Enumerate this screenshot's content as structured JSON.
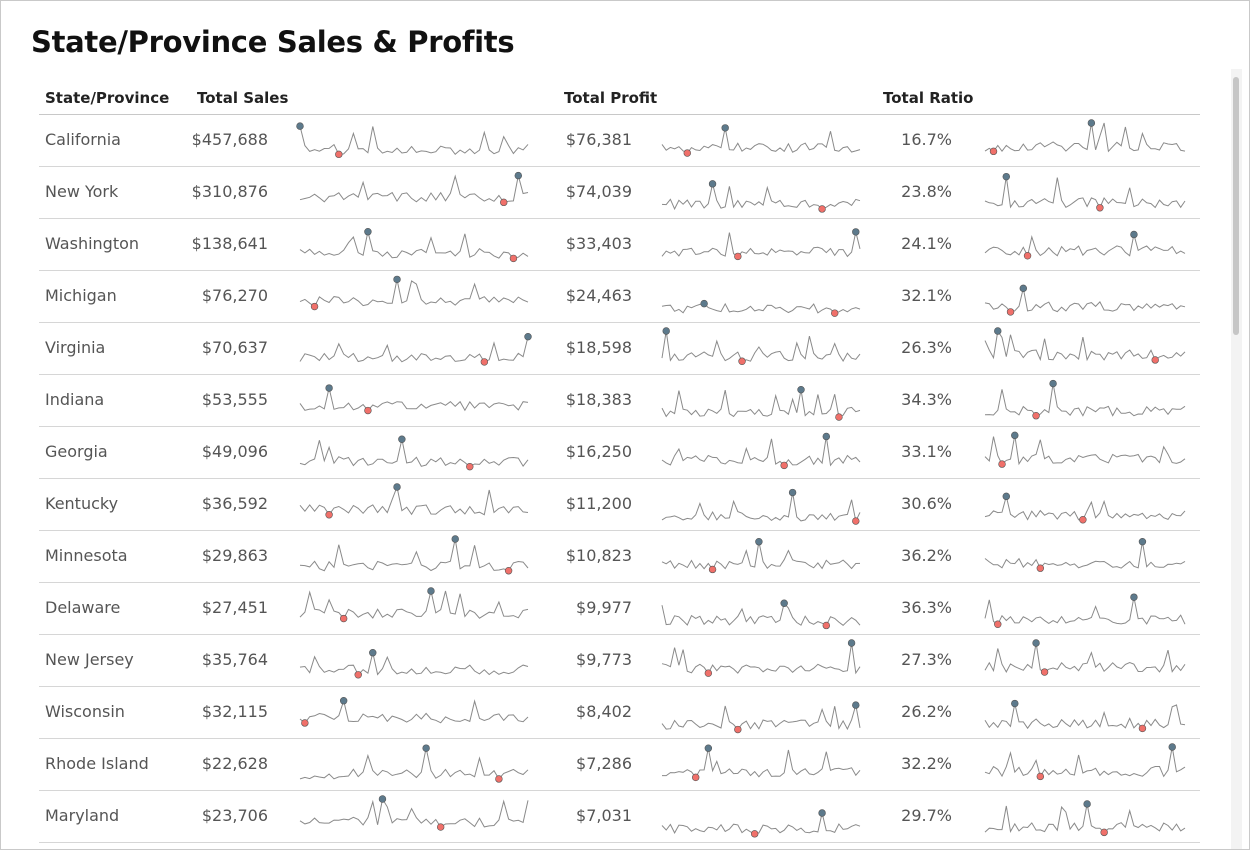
{
  "title": "State/Province Sales & Profits",
  "columns": {
    "state": "State/Province",
    "sales": "Total Sales",
    "profit": "Total Profit",
    "ratio": "Total Ratio"
  },
  "colors": {
    "line": "#8a8a8a",
    "max_marker": "#5d7a8c",
    "min_marker": "#f0706a"
  },
  "rows": [
    {
      "state": "California",
      "sales": "$457,688",
      "profit": "$76,381",
      "ratio": "16.7%"
    },
    {
      "state": "New York",
      "sales": "$310,876",
      "profit": "$74,039",
      "ratio": "23.8%"
    },
    {
      "state": "Washington",
      "sales": "$138,641",
      "profit": "$33,403",
      "ratio": "24.1%"
    },
    {
      "state": "Michigan",
      "sales": "$76,270",
      "profit": "$24,463",
      "ratio": "32.1%"
    },
    {
      "state": "Virginia",
      "sales": "$70,637",
      "profit": "$18,598",
      "ratio": "26.3%"
    },
    {
      "state": "Indiana",
      "sales": "$53,555",
      "profit": "$18,383",
      "ratio": "34.3%"
    },
    {
      "state": "Georgia",
      "sales": "$49,096",
      "profit": "$16,250",
      "ratio": "33.1%"
    },
    {
      "state": "Kentucky",
      "sales": "$36,592",
      "profit": "$11,200",
      "ratio": "30.6%"
    },
    {
      "state": "Minnesota",
      "sales": "$29,863",
      "profit": "$10,823",
      "ratio": "36.2%"
    },
    {
      "state": "Delaware",
      "sales": "$27,451",
      "profit": "$9,977",
      "ratio": "36.3%"
    },
    {
      "state": "New Jersey",
      "sales": "$35,764",
      "profit": "$9,773",
      "ratio": "27.3%"
    },
    {
      "state": "Wisconsin",
      "sales": "$32,115",
      "profit": "$8,402",
      "ratio": "26.2%"
    },
    {
      "state": "Rhode Island",
      "sales": "$22,628",
      "profit": "$7,286",
      "ratio": "32.2%"
    },
    {
      "state": "Maryland",
      "sales": "$23,706",
      "profit": "$7,031",
      "ratio": "29.7%"
    }
  ]
}
